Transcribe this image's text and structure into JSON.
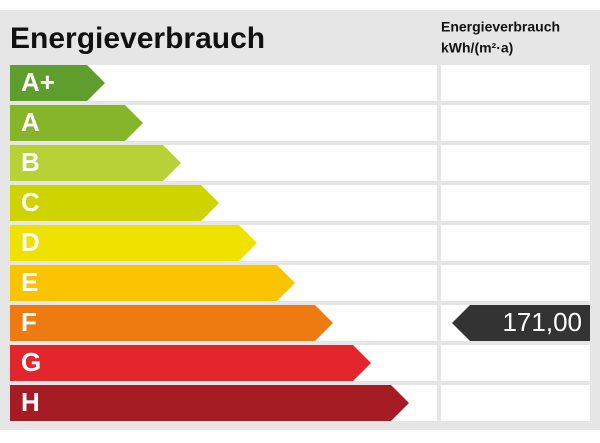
{
  "title": "Energieverbrauch",
  "column_header": [
    "Energieverbrauch",
    "kWh/(m²·a)"
  ],
  "rows": [
    {
      "class": "A+",
      "color": "#5f9e2c"
    },
    {
      "class": "A",
      "color": "#87b52a"
    },
    {
      "class": "B",
      "color": "#b8d136"
    },
    {
      "class": "C",
      "color": "#cfd400"
    },
    {
      "class": "D",
      "color": "#efe100"
    },
    {
      "class": "E",
      "color": "#fbc400"
    },
    {
      "class": "F",
      "color": "#ee7b11",
      "value": "171,00"
    },
    {
      "class": "G",
      "color": "#e2262b"
    },
    {
      "class": "H",
      "color": "#a61c24"
    }
  ]
}
